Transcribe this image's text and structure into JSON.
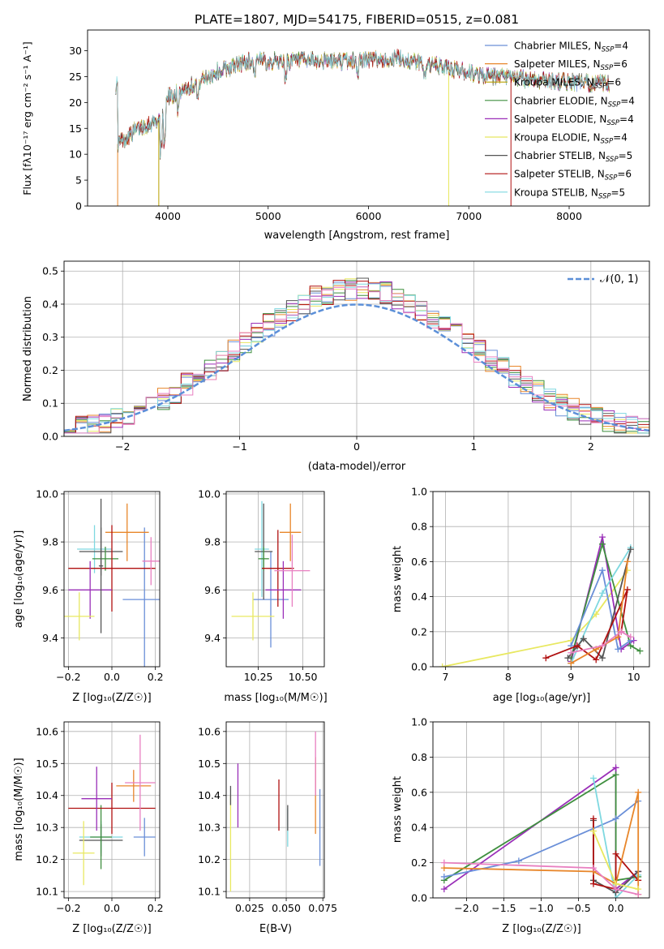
{
  "title": "PLATE=1807, MJD=54175, FIBERID=0515, z=0.081",
  "colors": {
    "chabrier_miles": "#6a8fd8",
    "salpeter_miles": "#e8862a",
    "kroupa_miles": "#b8a000",
    "chabrier_elodie": "#3f8f3f",
    "salpeter_elodie": "#9a2fb8",
    "kroupa_elodie": "#e8e860",
    "chabrier_stelib": "#555555",
    "salpeter_stelib": "#b01010",
    "kroupa_stelib": "#7fd8e0",
    "pink": "#e87fc0",
    "gauss": "#5b8fd8"
  },
  "chart_data": [
    {
      "id": "spectrum",
      "type": "line",
      "xlabel": "wavelength [Angstrom, rest frame]",
      "ylabel": "Flux [fλ10⁻¹⁷ erg cm⁻² s⁻¹ A⁻¹]",
      "xlim": [
        3200,
        8800
      ],
      "ylim": [
        0,
        34
      ],
      "xticks": [
        4000,
        5000,
        6000,
        7000,
        8000
      ],
      "yticks": [
        0,
        5,
        10,
        15,
        20,
        25,
        30
      ],
      "legend_position": "top-right",
      "continuum": [
        [
          3500,
          12
        ],
        [
          3700,
          15
        ],
        [
          3950,
          17
        ],
        [
          4000,
          21
        ],
        [
          4300,
          24
        ],
        [
          4500,
          26
        ],
        [
          4800,
          28
        ],
        [
          5200,
          28
        ],
        [
          5800,
          28
        ],
        [
          6300,
          28.5
        ],
        [
          6700,
          27
        ],
        [
          7200,
          25
        ],
        [
          7600,
          24.5
        ],
        [
          8000,
          24
        ],
        [
          8400,
          23.5
        ]
      ],
      "series": [
        {
          "name": "Chabrier MILES, N_SSP=4",
          "color_key": "chabrier_miles"
        },
        {
          "name": "Salpeter MILES, N_SSP=6",
          "color_key": "salpeter_miles"
        },
        {
          "name": "Kroupa MILES, N_SSP=6",
          "color_key": "kroupa_miles"
        },
        {
          "name": "Chabrier ELODIE, N_SSP=4",
          "color_key": "chabrier_elodie"
        },
        {
          "name": "Salpeter ELODIE, N_SSP=4",
          "color_key": "salpeter_elodie"
        },
        {
          "name": "Kroupa ELODIE, N_SSP=4",
          "color_key": "kroupa_elodie"
        },
        {
          "name": "Chabrier STELIB, N_SSP=5",
          "color_key": "chabrier_stelib"
        },
        {
          "name": "Salpeter STELIB, N_SSP=6",
          "color_key": "salpeter_stelib"
        },
        {
          "name": "Kroupa STELIB, N_SSP=5",
          "color_key": "kroupa_stelib"
        }
      ]
    },
    {
      "id": "residuals",
      "type": "line",
      "xlabel": "(data-model)/error",
      "ylabel": "Normed distribution",
      "xlim": [
        -2.5,
        2.5
      ],
      "ylim": [
        0,
        0.53
      ],
      "xticks": [
        -2,
        -1,
        0,
        1,
        2
      ],
      "yticks": [
        0.0,
        0.1,
        0.2,
        0.3,
        0.4,
        0.5
      ],
      "grid": true,
      "legend_position": "top-right",
      "gaussian_label": "𝒩(0, 1)",
      "bin_width": 0.1
    },
    {
      "id": "z_age",
      "type": "scatter",
      "xlabel": "Z [log₁₀(Z/Z☉)]",
      "ylabel": "age  [log₁₀(age/yr)]",
      "xlim": [
        -0.22,
        0.22
      ],
      "ylim": [
        9.28,
        10.01
      ],
      "xticks": [
        -0.2,
        0.0,
        0.2
      ],
      "yticks": [
        9.4,
        9.6,
        9.8,
        10.0
      ],
      "grid": true,
      "points": [
        {
          "c": "chabrier_miles",
          "x": 0.15,
          "xe": 0.1,
          "y": 9.56,
          "ye": 0.3
        },
        {
          "c": "salpeter_miles",
          "x": 0.07,
          "xe": 0.1,
          "y": 9.84,
          "ye": 0.12
        },
        {
          "c": "kroupa_stelib",
          "x": -0.08,
          "xe": 0.08,
          "y": 9.77,
          "ye": 0.1
        },
        {
          "c": "chabrier_stelib",
          "x": -0.05,
          "xe": 0.1,
          "y": 9.76,
          "ye": 0.1
        },
        {
          "c": "chabrier_elodie",
          "x": -0.03,
          "xe": 0.06,
          "y": 9.73,
          "ye": 0.05
        },
        {
          "c": "salpeter_stelib",
          "x": 0.0,
          "xe": 0.2,
          "y": 9.69,
          "ye": 0.18
        },
        {
          "c": "salpeter_elodie",
          "x": -0.1,
          "xe": 0.1,
          "y": 9.6,
          "ye": 0.12
        },
        {
          "c": "kroupa_elodie",
          "x": -0.15,
          "xe": 0.07,
          "y": 9.49,
          "ye": 0.1
        },
        {
          "c": "pink",
          "x": 0.18,
          "xe": 0.04,
          "y": 9.72,
          "ye": 0.1
        },
        {
          "c": "chabrier_stelib",
          "x": -0.05,
          "xe": 0.01,
          "y": 9.7,
          "ye": 0.28
        }
      ]
    },
    {
      "id": "mass_age",
      "type": "scatter",
      "xlabel": "mass [log₁₀(M/M☉)]",
      "ylabel": "",
      "xlim": [
        10.07,
        10.62
      ],
      "ylim": [
        9.28,
        10.01
      ],
      "xticks": [
        10.25,
        10.5
      ],
      "yticks": [
        9.4,
        9.6,
        9.8,
        10.0
      ],
      "grid": true,
      "points": [
        {
          "c": "chabrier_miles",
          "x": 10.32,
          "xe": 0.1,
          "y": 9.56,
          "ye": 0.2
        },
        {
          "c": "salpeter_miles",
          "x": 10.43,
          "xe": 0.06,
          "y": 9.84,
          "ye": 0.12
        },
        {
          "c": "kroupa_stelib",
          "x": 10.27,
          "xe": 0.04,
          "y": 9.77,
          "ye": 0.2
        },
        {
          "c": "chabrier_stelib",
          "x": 10.28,
          "xe": 0.05,
          "y": 9.76,
          "ye": 0.2
        },
        {
          "c": "chabrier_elodie",
          "x": 10.28,
          "xe": 0.03,
          "y": 9.73,
          "ye": 0.05
        },
        {
          "c": "salpeter_stelib",
          "x": 10.36,
          "xe": 0.09,
          "y": 9.69,
          "ye": 0.16
        },
        {
          "c": "salpeter_elodie",
          "x": 10.39,
          "xe": 0.1,
          "y": 9.6,
          "ye": 0.12
        },
        {
          "c": "kroupa_elodie",
          "x": 10.22,
          "xe": 0.12,
          "y": 9.49,
          "ye": 0.1
        },
        {
          "c": "pink",
          "x": 10.44,
          "xe": 0.1,
          "y": 9.68,
          "ye": 0.15
        }
      ]
    },
    {
      "id": "z_mass",
      "type": "scatter",
      "xlabel": "Z [log₁₀(Z/Z☉)]",
      "ylabel": "mass [log₁₀(M/M☉)]",
      "xlim": [
        -0.22,
        0.22
      ],
      "ylim": [
        10.08,
        10.63
      ],
      "xticks": [
        -0.2,
        0.0,
        0.2
      ],
      "yticks": [
        10.1,
        10.2,
        10.3,
        10.4,
        10.5,
        10.6
      ],
      "grid": true,
      "points": [
        {
          "c": "chabrier_miles",
          "x": 0.15,
          "xe": 0.05,
          "y": 10.27,
          "ye": 0.06
        },
        {
          "c": "salpeter_miles",
          "x": 0.1,
          "xe": 0.08,
          "y": 10.43,
          "ye": 0.05
        },
        {
          "c": "kroupa_stelib",
          "x": -0.05,
          "xe": 0.1,
          "y": 10.27,
          "ye": 0.05
        },
        {
          "c": "chabrier_stelib",
          "x": -0.05,
          "xe": 0.1,
          "y": 10.26,
          "ye": 0.05
        },
        {
          "c": "chabrier_elodie",
          "x": -0.05,
          "xe": 0.05,
          "y": 10.27,
          "ye": 0.1
        },
        {
          "c": "salpeter_stelib",
          "x": 0.0,
          "xe": 0.2,
          "y": 10.36,
          "ye": 0.08
        },
        {
          "c": "salpeter_elodie",
          "x": -0.07,
          "xe": 0.07,
          "y": 10.39,
          "ye": 0.1
        },
        {
          "c": "kroupa_elodie",
          "x": -0.13,
          "xe": 0.05,
          "y": 10.22,
          "ye": 0.1
        },
        {
          "c": "pink",
          "x": 0.13,
          "xe": 0.07,
          "y": 10.44,
          "ye": 0.15
        }
      ]
    },
    {
      "id": "ebv_mass",
      "type": "scatter",
      "xlabel": "E(B-V)",
      "ylabel": "",
      "xlim": [
        0.009,
        0.076
      ],
      "ylim": [
        10.08,
        10.63
      ],
      "xticks": [
        0.025,
        0.05,
        0.075
      ],
      "yticks": [
        10.1,
        10.2,
        10.3,
        10.4,
        10.5,
        10.6
      ],
      "grid": true,
      "points": [
        {
          "c": "chabrier_miles",
          "x": 0.073,
          "xe": 0,
          "y": 10.3,
          "ye": 0.12
        },
        {
          "c": "salpeter_miles",
          "x": 0.07,
          "xe": 0,
          "y": 10.4,
          "ye": 0.12
        },
        {
          "c": "pink",
          "x": 0.07,
          "xe": 0,
          "y": 10.5,
          "ye": 0.1
        },
        {
          "c": "kroupa_stelib",
          "x": 0.051,
          "xe": 0,
          "y": 10.3,
          "ye": 0.06
        },
        {
          "c": "chabrier_stelib",
          "x": 0.051,
          "xe": 0,
          "y": 10.33,
          "ye": 0.04
        },
        {
          "c": "salpeter_stelib",
          "x": 0.045,
          "xe": 0,
          "y": 10.37,
          "ye": 0.08
        },
        {
          "c": "salpeter_elodie",
          "x": 0.017,
          "xe": 0,
          "y": 10.4,
          "ye": 0.1
        },
        {
          "c": "kroupa_elodie",
          "x": 0.012,
          "xe": 0,
          "y": 10.25,
          "ye": 0.15
        },
        {
          "c": "chabrier_stelib",
          "x": 0.012,
          "xe": 0,
          "y": 10.4,
          "ye": 0.03
        }
      ]
    },
    {
      "id": "age_weight",
      "type": "line",
      "xlabel": "age  [log₁₀(age/yr)]",
      "ylabel": "mass weight",
      "xlim": [
        6.8,
        10.25
      ],
      "ylim": [
        0,
        1.0
      ],
      "xticks": [
        7,
        8,
        9,
        10
      ],
      "yticks": [
        0.0,
        0.2,
        0.4,
        0.6,
        0.8,
        1.0
      ],
      "grid": true,
      "series": [
        {
          "c": "kroupa_elodie",
          "pts": [
            [
              6.95,
              0.0
            ],
            [
              9.0,
              0.15
            ],
            [
              9.4,
              0.3
            ],
            [
              9.9,
              0.55
            ]
          ]
        },
        {
          "c": "salpeter_elodie",
          "pts": [
            [
              9.0,
              0.03
            ],
            [
              9.5,
              0.74
            ],
            [
              9.8,
              0.1
            ],
            [
              10.0,
              0.15
            ]
          ]
        },
        {
          "c": "chabrier_elodie",
          "pts": [
            [
              9.0,
              0.05
            ],
            [
              9.5,
              0.7
            ],
            [
              9.95,
              0.12
            ],
            [
              10.1,
              0.09
            ]
          ]
        },
        {
          "c": "chabrier_miles",
          "pts": [
            [
              9.0,
              0.12
            ],
            [
              9.5,
              0.55
            ],
            [
              9.75,
              0.1
            ],
            [
              9.95,
              0.15
            ]
          ]
        },
        {
          "c": "kroupa_stelib",
          "pts": [
            [
              9.0,
              0.02
            ],
            [
              9.5,
              0.42
            ],
            [
              9.95,
              0.68
            ]
          ]
        },
        {
          "c": "chabrier_stelib",
          "pts": [
            [
              8.95,
              0.05
            ],
            [
              9.2,
              0.16
            ],
            [
              9.5,
              0.05
            ],
            [
              9.95,
              0.67
            ]
          ]
        },
        {
          "c": "salpeter_stelib",
          "pts": [
            [
              8.6,
              0.05
            ],
            [
              9.1,
              0.12
            ],
            [
              9.4,
              0.04
            ],
            [
              9.9,
              0.44
            ],
            [
              9.8,
              0.2
            ]
          ]
        },
        {
          "c": "salpeter_miles",
          "pts": [
            [
              9.0,
              0.02
            ],
            [
              9.4,
              0.1
            ],
            [
              9.75,
              0.17
            ],
            [
              9.9,
              0.6
            ]
          ]
        },
        {
          "c": "pink",
          "pts": [
            [
              9.0,
              0.08
            ],
            [
              9.5,
              0.12
            ],
            [
              9.8,
              0.2
            ],
            [
              9.95,
              0.17
            ]
          ]
        }
      ]
    },
    {
      "id": "z_weight",
      "type": "line",
      "xlabel": "Z [log₁₀(Z/Z☉)]",
      "ylabel": "mass weight",
      "xlim": [
        -2.45,
        0.45
      ],
      "ylim": [
        0,
        1.0
      ],
      "xticks": [
        -2.0,
        -1.5,
        -1.0,
        -0.5,
        0.0
      ],
      "yticks": [
        0.0,
        0.2,
        0.4,
        0.6,
        0.8,
        1.0
      ],
      "grid": true,
      "series": [
        {
          "c": "salpeter_elodie",
          "pts": [
            [
              -2.3,
              0.05
            ],
            [
              0.0,
              0.74
            ],
            [
              0.0,
              0.05
            ],
            [
              0.3,
              0.15
            ]
          ]
        },
        {
          "c": "chabrier_elodie",
          "pts": [
            [
              -2.3,
              0.1
            ],
            [
              0.0,
              0.7
            ],
            [
              0.0,
              0.1
            ],
            [
              0.3,
              0.12
            ]
          ]
        },
        {
          "c": "chabrier_miles",
          "pts": [
            [
              -2.3,
              0.12
            ],
            [
              -1.3,
              0.21
            ],
            [
              0.0,
              0.45
            ],
            [
              0.3,
              0.55
            ]
          ]
        },
        {
          "c": "kroupa_stelib",
          "pts": [
            [
              -0.3,
              0.68
            ],
            [
              0.0,
              0.0
            ],
            [
              0.3,
              0.13
            ]
          ]
        },
        {
          "c": "chabrier_stelib",
          "pts": [
            [
              -0.3,
              0.44
            ],
            [
              -0.3,
              0.1
            ],
            [
              0.0,
              0.03
            ],
            [
              0.3,
              0.15
            ]
          ]
        },
        {
          "c": "salpeter_stelib",
          "pts": [
            [
              -0.3,
              0.45
            ],
            [
              -0.3,
              0.08
            ],
            [
              0.0,
              0.05
            ],
            [
              0.0,
              0.25
            ],
            [
              0.3,
              0.1
            ]
          ]
        },
        {
          "c": "salpeter_miles",
          "pts": [
            [
              -2.3,
              0.17
            ],
            [
              -0.3,
              0.15
            ],
            [
              0.0,
              0.08
            ],
            [
              0.3,
              0.6
            ],
            [
              0.3,
              0.02
            ]
          ]
        },
        {
          "c": "kroupa_elodie",
          "pts": [
            [
              -0.3,
              0.38
            ],
            [
              0.0,
              0.08
            ],
            [
              0.3,
              0.05
            ]
          ]
        },
        {
          "c": "pink",
          "pts": [
            [
              -2.3,
              0.2
            ],
            [
              -0.3,
              0.17
            ],
            [
              0.0,
              0.05
            ],
            [
              0.3,
              0.02
            ]
          ]
        }
      ]
    }
  ]
}
